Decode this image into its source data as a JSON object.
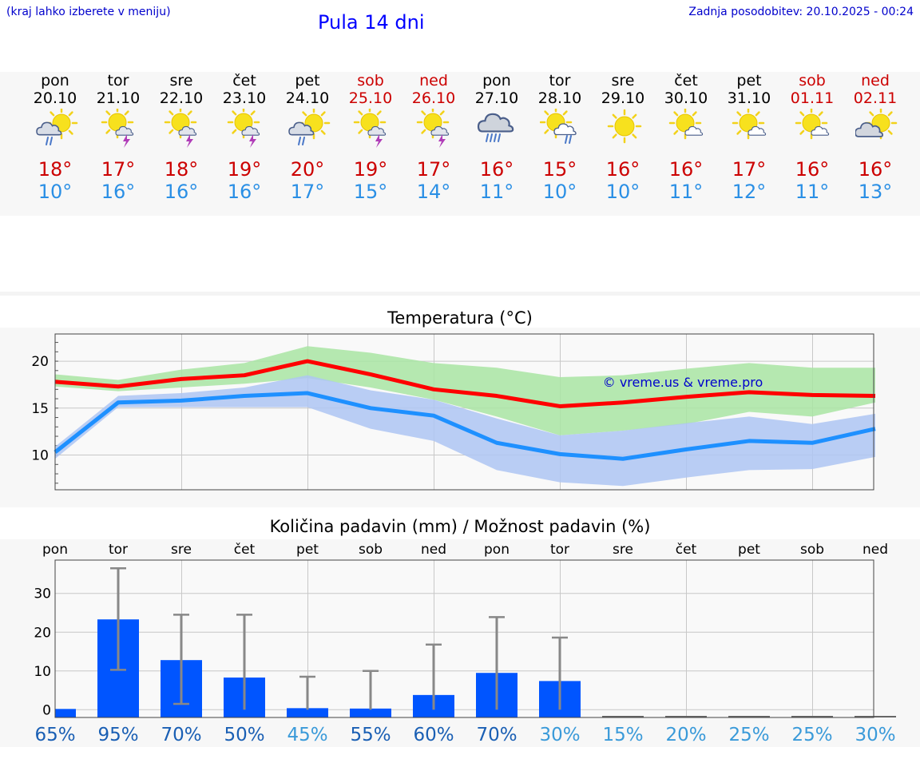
{
  "header": {
    "hint": "(kraj lahko izberete v meniju)",
    "title": "Pula 14 dni",
    "last_update": "Zadnja posodobitev: 20.10.2025 - 00:24"
  },
  "colors": {
    "max_temp": "#cc0000",
    "min_temp": "#2a8fe5",
    "max_band": "#a9e5a3",
    "min_band": "#aec6f3",
    "max_line": "#ff0000",
    "min_line": "#1e90ff",
    "bar": "#0055ff",
    "whisker": "#888888",
    "pct_dark": "#1a5fb4",
    "pct_light": "#3a9ad9"
  },
  "days": [
    {
      "name": "pon",
      "date": "20.10",
      "weekend": false,
      "icon": "partly-sunny-rain-icon",
      "tmax": "18°",
      "tmin": "10°"
    },
    {
      "name": "tor",
      "date": "21.10",
      "weekend": false,
      "icon": "sun-thunderstorm-icon",
      "tmax": "17°",
      "tmin": "16°"
    },
    {
      "name": "sre",
      "date": "22.10",
      "weekend": false,
      "icon": "sun-thunderstorm-icon",
      "tmax": "18°",
      "tmin": "16°"
    },
    {
      "name": "čet",
      "date": "23.10",
      "weekend": false,
      "icon": "sun-thunderstorm-icon",
      "tmax": "19°",
      "tmin": "16°"
    },
    {
      "name": "pet",
      "date": "24.10",
      "weekend": false,
      "icon": "partly-sunny-rain-icon",
      "tmax": "20°",
      "tmin": "17°"
    },
    {
      "name": "sob",
      "date": "25.10",
      "weekend": true,
      "icon": "sun-thunderstorm-icon",
      "tmax": "19°",
      "tmin": "15°"
    },
    {
      "name": "ned",
      "date": "26.10",
      "weekend": true,
      "icon": "sun-thunderstorm-icon",
      "tmax": "17°",
      "tmin": "14°"
    },
    {
      "name": "pon",
      "date": "27.10",
      "weekend": false,
      "icon": "cloud-heavy-rain-icon",
      "tmax": "16°",
      "tmin": "11°"
    },
    {
      "name": "tor",
      "date": "28.10",
      "weekend": false,
      "icon": "sun-cloud-rain-icon",
      "tmax": "15°",
      "tmin": "10°"
    },
    {
      "name": "sre",
      "date": "29.10",
      "weekend": false,
      "icon": "sun-icon",
      "tmax": "16°",
      "tmin": "10°"
    },
    {
      "name": "čet",
      "date": "30.10",
      "weekend": false,
      "icon": "sun-small-cloud-icon",
      "tmax": "16°",
      "tmin": "11°"
    },
    {
      "name": "pet",
      "date": "31.10",
      "weekend": false,
      "icon": "sun-small-cloud-icon",
      "tmax": "17°",
      "tmin": "12°"
    },
    {
      "name": "sob",
      "date": "01.11",
      "weekend": true,
      "icon": "sun-small-cloud-icon",
      "tmax": "16°",
      "tmin": "11°"
    },
    {
      "name": "ned",
      "date": "02.11",
      "weekend": true,
      "icon": "partly-cloudy-icon",
      "tmax": "16°",
      "tmin": "13°"
    }
  ],
  "chart_data": [
    {
      "type": "line",
      "title": "Temperatura (°C)",
      "watermark": "© vreme.us & vreme.pro",
      "ylim": [
        6.3,
        22.9
      ],
      "yticks": [
        10,
        15,
        20
      ],
      "ytick_labels": [
        "10",
        "15",
        "20"
      ],
      "grid": true,
      "x": [
        0,
        1,
        2,
        3,
        4,
        5,
        6,
        7,
        8,
        9,
        10,
        11,
        12,
        13
      ],
      "series": [
        {
          "role": "max-line",
          "values": [
            17.8,
            17.3,
            18.1,
            18.5,
            20.0,
            18.6,
            17.0,
            16.3,
            15.2,
            15.6,
            16.2,
            16.7,
            16.4,
            16.3
          ]
        },
        {
          "role": "max-band-upper",
          "values": [
            18.6,
            18.0,
            19.1,
            19.8,
            21.6,
            20.9,
            19.8,
            19.3,
            18.3,
            18.5,
            19.2,
            19.8,
            19.3,
            19.3
          ]
        },
        {
          "role": "max-band-lower",
          "values": [
            17.3,
            16.8,
            17.2,
            17.6,
            18.2,
            17.2,
            15.9,
            14.1,
            12.1,
            12.6,
            13.3,
            14.6,
            14.1,
            15.6
          ]
        },
        {
          "role": "min-line",
          "values": [
            10.3,
            15.6,
            15.8,
            16.3,
            16.6,
            15.0,
            14.2,
            11.3,
            10.1,
            9.6,
            10.6,
            11.5,
            11.3,
            12.8
          ]
        },
        {
          "role": "min-band-upper",
          "values": [
            10.9,
            16.3,
            16.6,
            17.2,
            18.5,
            16.9,
            15.9,
            13.9,
            12.1,
            12.6,
            13.4,
            14.1,
            13.3,
            14.4
          ]
        },
        {
          "role": "min-band-lower",
          "values": [
            9.6,
            15.1,
            15.1,
            15.1,
            15.1,
            12.8,
            11.5,
            8.4,
            7.1,
            6.7,
            7.6,
            8.4,
            8.5,
            9.8
          ]
        }
      ]
    },
    {
      "type": "bar",
      "title": "Količina padavin (mm) / Možnost padavin (%)",
      "categories": [
        "pon",
        "tor",
        "sre",
        "čet",
        "pet",
        "sob",
        "ned",
        "pon",
        "tor",
        "sre",
        "čet",
        "pet",
        "sob",
        "ned"
      ],
      "ylim": [
        -2,
        38.6
      ],
      "yticks": [
        0,
        10,
        20,
        30
      ],
      "ytick_labels": [
        "0",
        "10",
        "20",
        "30"
      ],
      "grid": true,
      "values": [
        0.2,
        23.3,
        12.8,
        8.3,
        0.4,
        0.3,
        3.8,
        9.5,
        7.4,
        0,
        0,
        0,
        0,
        0
      ],
      "error_low": [
        0,
        10.3,
        1.5,
        0,
        0,
        0,
        0,
        0,
        0,
        0,
        0,
        0,
        0,
        0
      ],
      "error_high": [
        0,
        36.5,
        24.5,
        24.5,
        8.5,
        10.0,
        16.8,
        23.9,
        18.6,
        0,
        0,
        0,
        0,
        0
      ],
      "probability": [
        "65%",
        "95%",
        "70%",
        "50%",
        "45%",
        "55%",
        "60%",
        "70%",
        "30%",
        "15%",
        "20%",
        "25%",
        "25%",
        "30%"
      ],
      "probability_shade": [
        "dark",
        "dark",
        "dark",
        "dark",
        "light",
        "dark",
        "dark",
        "dark",
        "light",
        "light",
        "light",
        "light",
        "light",
        "light"
      ]
    }
  ]
}
